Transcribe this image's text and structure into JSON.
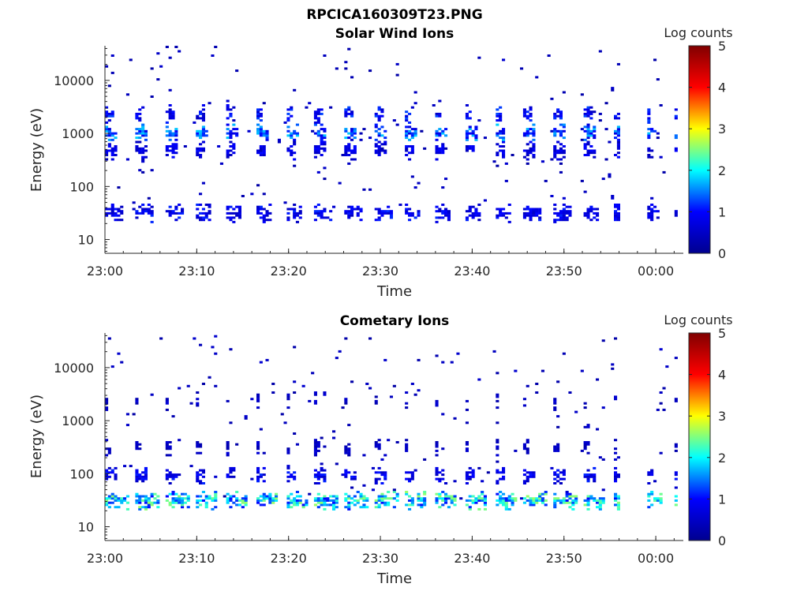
{
  "figure": {
    "suptitle": "RPCICA160309T23.PNG"
  },
  "colormap": {
    "name": "jet",
    "stops": [
      "#00008f",
      "#0000ff",
      "#00ffff",
      "#ffff00",
      "#ff0000",
      "#800000"
    ]
  },
  "chart_data": [
    {
      "type": "heatmap",
      "title": "Solar Wind Ions",
      "xlabel": "Time",
      "ylabel": "Energy (eV)",
      "yscale": "log",
      "ylim": [
        5.5,
        45000
      ],
      "xlim": [
        "23:00",
        "00:03"
      ],
      "x_ticks": [
        "23:00",
        "23:10",
        "23:20",
        "23:30",
        "23:40",
        "23:50",
        "00:00"
      ],
      "y_ticks": [
        10,
        100,
        1000,
        10000
      ],
      "y_tick_labels": [
        "10",
        "100",
        "1000",
        "10000"
      ],
      "colorbar": {
        "label": "Log counts",
        "range": [
          0,
          5
        ],
        "ticks": [
          "0",
          "1",
          "2",
          "3",
          "4",
          "5"
        ]
      },
      "data_gap": [
        "23:56",
        "23:59"
      ],
      "bands": [
        {
          "energy_ev": 30,
          "log_counts": 0.9,
          "sweep_fraction": 0.55
        },
        {
          "energy_ev": 450,
          "log_counts": 0.8,
          "sweep_fraction": 0.35
        },
        {
          "energy_ev": 1000,
          "log_counts": 1.4,
          "sweep_fraction": 0.4
        },
        {
          "energy_ev": 2200,
          "log_counts": 1.0,
          "sweep_fraction": 0.25
        }
      ],
      "sweep_period_min": 3.25
    },
    {
      "type": "heatmap",
      "title": "Cometary Ions",
      "xlabel": "Time",
      "ylabel": "Energy (eV)",
      "yscale": "log",
      "ylim": [
        5.5,
        45000
      ],
      "xlim": [
        "23:00",
        "00:03"
      ],
      "x_ticks": [
        "23:00",
        "23:10",
        "23:20",
        "23:30",
        "23:40",
        "23:50",
        "00:00"
      ],
      "y_ticks": [
        10,
        100,
        1000,
        10000
      ],
      "y_tick_labels": [
        "10",
        "100",
        "1000",
        "10000"
      ],
      "colorbar": {
        "label": "Log counts",
        "range": [
          0,
          5
        ],
        "ticks": [
          "0",
          "1",
          "2",
          "3",
          "4",
          "5"
        ]
      },
      "data_gap": [
        "23:56",
        "23:59"
      ],
      "bands": [
        {
          "energy_ev": 30,
          "log_counts": 2.0,
          "sweep_fraction": 0.75
        },
        {
          "energy_ev": 90,
          "log_counts": 0.9,
          "sweep_fraction": 0.35
        },
        {
          "energy_ev": 300,
          "log_counts": 0.5,
          "sweep_fraction": 0.15
        },
        {
          "energy_ev": 2200,
          "log_counts": 0.5,
          "sweep_fraction": 0.1
        }
      ],
      "sweep_period_min": 3.25
    }
  ]
}
